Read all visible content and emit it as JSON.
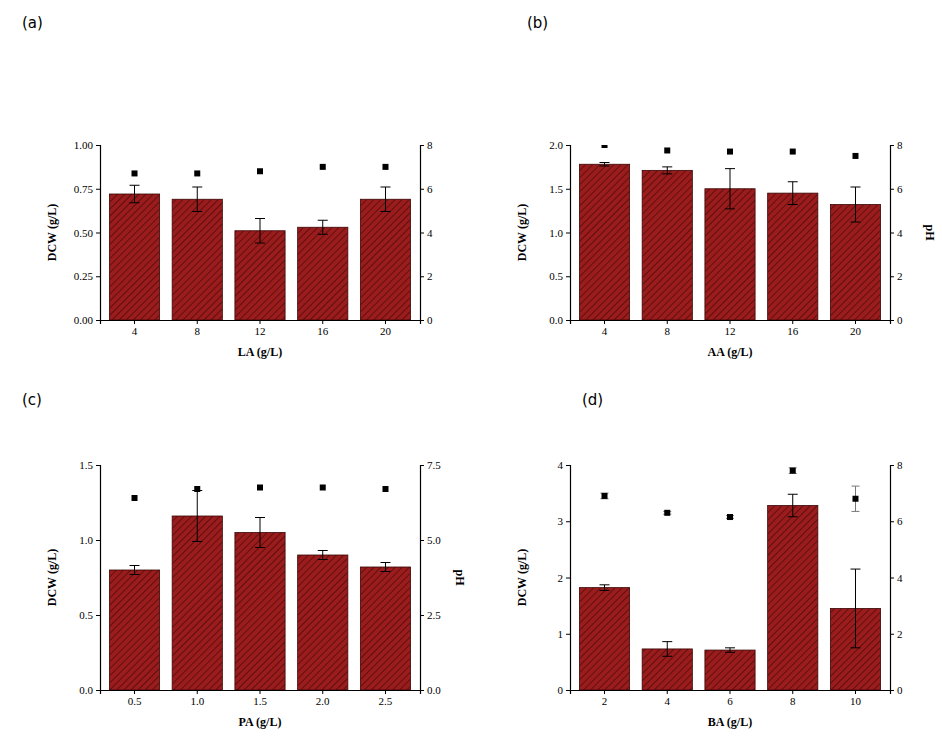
{
  "chart_data": [
    {
      "type": "bar",
      "title": "(a)",
      "x_label": "LA (g/L)",
      "y_label": "DCW (g/L)",
      "categories": [
        "4",
        "8",
        "12",
        "16",
        "20"
      ],
      "ylim": [
        0,
        1
      ],
      "yticks": [
        {
          "value": 0,
          "label": "0.00"
        },
        {
          "value": 0.25,
          "label": "0.25"
        },
        {
          "value": 0.5,
          "label": "0.50"
        },
        {
          "value": 0.75,
          "label": "0.75"
        },
        {
          "value": 1,
          "label": "1.00"
        }
      ],
      "y2lim": [
        0,
        8
      ],
      "y2ticks": [
        0,
        2,
        4,
        6,
        8
      ],
      "series": [
        {
          "type": "bar",
          "color": "#9b1c1c",
          "values": [
            0.72,
            0.69,
            0.51,
            0.53,
            0.69
          ],
          "errors": [
            0.05,
            0.07,
            0.07,
            0.04,
            0.07
          ]
        },
        {
          "type": "scatter",
          "axis": "y2",
          "color": "#000000",
          "marker": "square",
          "values": [
            6.7,
            6.7,
            6.8,
            7.0,
            7.0
          ]
        }
      ]
    },
    {
      "type": "bar",
      "title": "(b)",
      "x_label": "AA (g/L)",
      "y_label": "DCW (g/L)",
      "y2_label": "pH",
      "categories": [
        "4",
        "8",
        "12",
        "16",
        "20"
      ],
      "ylim": [
        0,
        2
      ],
      "yticks": [
        {
          "value": 0,
          "label": "0.0"
        },
        0.5,
        {
          "value": 1,
          "label": "1.0"
        },
        1.5,
        {
          "value": 2,
          "label": "2.0"
        }
      ],
      "y2lim": [
        0,
        8
      ],
      "y2ticks": [
        0,
        2,
        4,
        6,
        8
      ],
      "series": [
        {
          "type": "bar",
          "color": "#9b1c1c",
          "values": [
            1.78,
            1.71,
            1.5,
            1.45,
            1.32
          ],
          "errors": [
            0.02,
            0.04,
            0.23,
            0.13,
            0.2
          ]
        },
        {
          "type": "scatter",
          "axis": "y2",
          "color": "#000000",
          "marker": "square",
          "values": [
            8.0,
            7.75,
            7.7,
            7.7,
            7.5
          ]
        }
      ]
    },
    {
      "type": "bar",
      "title": "(c)",
      "x_label": "PA (g/L)",
      "y_label": "DCW (g/L)",
      "y2_label": "pH",
      "categories": [
        "0.5",
        "1.0",
        "1.5",
        "2.0",
        "2.5"
      ],
      "ylim": [
        0,
        1.5
      ],
      "yticks": [
        {
          "value": 0,
          "label": "0.0"
        },
        0.5,
        {
          "value": 1,
          "label": "1.0"
        },
        1.5
      ],
      "y2lim": [
        0,
        7.5
      ],
      "y2ticks": [
        {
          "value": 0,
          "label": "0.0"
        },
        2.5,
        {
          "value": 5,
          "label": "5.0"
        },
        7.5
      ],
      "series": [
        {
          "type": "bar",
          "color": "#9b1c1c",
          "values": [
            0.8,
            1.16,
            1.05,
            0.9,
            0.82
          ],
          "errors": [
            0.03,
            0.17,
            0.1,
            0.03,
            0.03
          ]
        },
        {
          "type": "scatter",
          "axis": "y2",
          "color": "#000000",
          "marker": "square",
          "values": [
            6.4,
            6.7,
            6.75,
            6.75,
            6.7
          ]
        }
      ]
    },
    {
      "type": "bar",
      "title": "(d)",
      "x_label": "BA (g/L)",
      "y_label": "DCW (g/L)",
      "categories": [
        "2",
        "4",
        "6",
        "8",
        "10"
      ],
      "ylim": [
        0,
        4
      ],
      "yticks": [
        0,
        1,
        2,
        3,
        4
      ],
      "y2lim": [
        0,
        8
      ],
      "y2ticks": [
        0,
        2,
        4,
        6,
        8
      ],
      "series": [
        {
          "type": "bar",
          "color": "#9b1c1c",
          "values": [
            1.82,
            0.73,
            0.71,
            3.28,
            1.45
          ],
          "errors": [
            0.05,
            0.13,
            0.04,
            0.2,
            0.7
          ]
        },
        {
          "type": "scatter",
          "axis": "y2",
          "color": "#000000",
          "marker": "square",
          "values": [
            6.9,
            6.3,
            6.15,
            7.8,
            6.8
          ],
          "errors": [
            0.1,
            0.05,
            0.05,
            0.1,
            0.45
          ]
        }
      ]
    }
  ]
}
